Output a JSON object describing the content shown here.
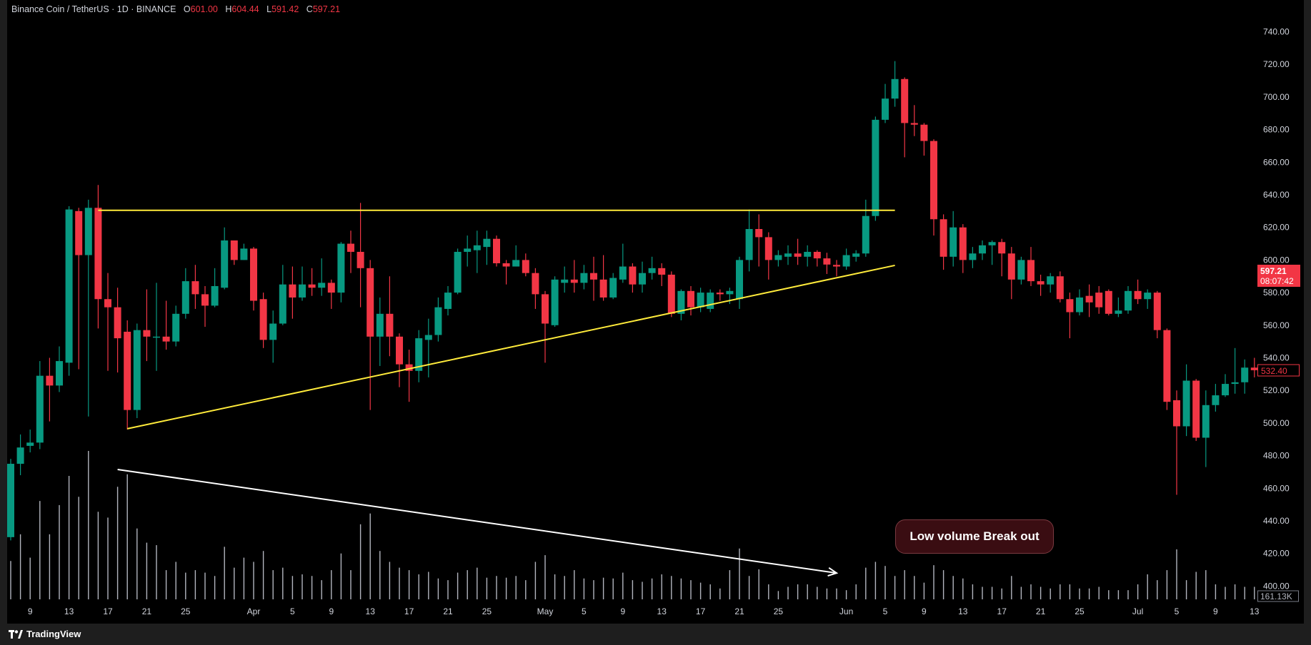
{
  "header": {
    "symbol": "Binance Coin / TetherUS · 1D · BINANCE",
    "o_label": "O",
    "o": "601.00",
    "h_label": "H",
    "h": "604.44",
    "l_label": "L",
    "l": "591.42",
    "c_label": "C",
    "c": "597.21"
  },
  "footer": {
    "brand": "TradingView"
  },
  "price_labels": {
    "current_price": "597.21",
    "countdown": "08:07:42",
    "last_candle_price": "532.40",
    "volume": "161.13K"
  },
  "colors": {
    "up": "#089981",
    "down": "#f23645",
    "volume": "#b2b5be",
    "resistance_line": "#ffeb3b",
    "trendline": "#ffeb3b",
    "arrow": "#ffffff",
    "callout_bg": "#3a0d12"
  },
  "chart_data": {
    "type": "candlestick",
    "ylim": [
      400,
      740
    ],
    "price_ticks": [
      "740.00",
      "720.00",
      "700.00",
      "680.00",
      "660.00",
      "640.00",
      "620.00",
      "600.00",
      "580.00",
      "560.00",
      "540.00",
      "520.00",
      "500.00",
      "480.00",
      "460.00",
      "440.00",
      "420.00",
      "400.00"
    ],
    "x_ticks": [
      {
        "label": "9",
        "date": "Mar 9"
      },
      {
        "label": "13",
        "date": "Mar 13"
      },
      {
        "label": "17",
        "date": "Mar 17"
      },
      {
        "label": "21",
        "date": "Mar 21"
      },
      {
        "label": "25",
        "date": "Mar 25"
      },
      {
        "label": "Apr",
        "date": "Apr 1"
      },
      {
        "label": "5",
        "date": "Apr 5"
      },
      {
        "label": "9",
        "date": "Apr 9"
      },
      {
        "label": "13",
        "date": "Apr 13"
      },
      {
        "label": "17",
        "date": "Apr 17"
      },
      {
        "label": "21",
        "date": "Apr 21"
      },
      {
        "label": "25",
        "date": "Apr 25"
      },
      {
        "label": "May",
        "date": "May 1"
      },
      {
        "label": "5",
        "date": "May 5"
      },
      {
        "label": "9",
        "date": "May 9"
      },
      {
        "label": "13",
        "date": "May 13"
      },
      {
        "label": "17",
        "date": "May 17"
      },
      {
        "label": "21",
        "date": "May 21"
      },
      {
        "label": "25",
        "date": "May 25"
      },
      {
        "label": "Jun",
        "date": "Jun 1"
      },
      {
        "label": "5",
        "date": "Jun 5"
      },
      {
        "label": "9",
        "date": "Jun 9"
      },
      {
        "label": "13",
        "date": "Jun 13"
      },
      {
        "label": "17",
        "date": "Jun 17"
      },
      {
        "label": "21",
        "date": "Jun 21"
      },
      {
        "label": "25",
        "date": "Jun 25"
      },
      {
        "label": "Jul",
        "date": "Jul 1"
      },
      {
        "label": "5",
        "date": "Jul 5"
      },
      {
        "label": "9",
        "date": "Jul 9"
      },
      {
        "label": "13",
        "date": "Jul 13"
      }
    ],
    "candle_fields": [
      "date",
      "open",
      "high",
      "low",
      "close",
      "volume_k"
    ],
    "candles": [
      [
        "Mar 7",
        430,
        478,
        428,
        475,
        494
      ],
      [
        "Mar 8",
        475,
        493,
        468,
        485,
        838
      ],
      [
        "Mar 9",
        486,
        496,
        482,
        488,
        537
      ],
      [
        "Mar 10",
        488,
        538,
        484,
        529,
        1267
      ],
      [
        "Mar 11",
        529,
        540,
        501,
        523,
        838
      ],
      [
        "Mar 12",
        523,
        547,
        519,
        538,
        1214
      ],
      [
        "Mar 13",
        537,
        633,
        529,
        631,
        1590
      ],
      [
        "Mar 14",
        630,
        632,
        533,
        603,
        1321
      ],
      [
        "Mar 15",
        603,
        637,
        504,
        632,
        1912
      ],
      [
        "Mar 16",
        632,
        646,
        558,
        576,
        1128
      ],
      [
        "Mar 17",
        576,
        592,
        532,
        571,
        1053
      ],
      [
        "Mar 18",
        571,
        583,
        531,
        552,
        1450
      ],
      [
        "Mar 19",
        556,
        563,
        496,
        508,
        1611
      ],
      [
        "Mar 20",
        508,
        561,
        503,
        557,
        913
      ],
      [
        "Mar 21",
        557,
        582,
        538,
        553,
        730
      ],
      [
        "Mar 22",
        553,
        586,
        532,
        553,
        698
      ],
      [
        "Mar 23",
        553,
        575,
        545,
        550,
        376
      ],
      [
        "Mar 24",
        550,
        572,
        547,
        567,
        483
      ],
      [
        "Mar 25",
        567,
        595,
        564,
        587,
        344
      ],
      [
        "Mar 26",
        587,
        597,
        570,
        579,
        376
      ],
      [
        "Mar 27",
        579,
        584,
        559,
        572,
        344
      ],
      [
        "Mar 28",
        572,
        595,
        571,
        584,
        301
      ],
      [
        "Mar 29",
        583,
        620,
        582,
        612,
        677
      ],
      [
        "Mar 30",
        612,
        612,
        597,
        600,
        408
      ],
      [
        "Mar 31",
        600,
        610,
        600,
        607,
        537
      ],
      [
        "Apr 1",
        607,
        608,
        569,
        575,
        483
      ],
      [
        "Apr 2",
        576,
        580,
        546,
        551,
        623
      ],
      [
        "Apr 3",
        551,
        569,
        537,
        561,
        376
      ],
      [
        "Apr 4",
        561,
        597,
        560,
        585,
        408
      ],
      [
        "Apr 5",
        585,
        596,
        564,
        577,
        301
      ],
      [
        "Apr 6",
        577,
        596,
        575,
        585,
        322
      ],
      [
        "Apr 7",
        585,
        595,
        578,
        583,
        301
      ],
      [
        "Apr 8",
        583,
        601,
        578,
        586,
        247
      ],
      [
        "Apr 9",
        586,
        588,
        570,
        580,
        376
      ],
      [
        "Apr 10",
        580,
        611,
        574,
        610,
        591
      ],
      [
        "Apr 11",
        610,
        618,
        592,
        605,
        376
      ],
      [
        "Apr 12",
        605,
        635,
        571,
        595,
        967
      ],
      [
        "Apr 13",
        595,
        600,
        508,
        553,
        1106
      ],
      [
        "Apr 14",
        553,
        577,
        535,
        567,
        623
      ],
      [
        "Apr 15",
        567,
        590,
        541,
        553,
        483
      ],
      [
        "Apr 16",
        553,
        555,
        522,
        536,
        408
      ],
      [
        "Apr 17",
        536,
        545,
        513,
        532,
        376
      ],
      [
        "Apr 18",
        532,
        557,
        525,
        552,
        322
      ],
      [
        "Apr 19",
        551,
        564,
        528,
        554,
        354
      ],
      [
        "Apr 20",
        554,
        577,
        550,
        571,
        269
      ],
      [
        "Apr 21",
        570,
        584,
        566,
        580,
        247
      ],
      [
        "Apr 22",
        580,
        607,
        579,
        605,
        344
      ],
      [
        "Apr 23",
        605,
        615,
        596,
        607,
        376
      ],
      [
        "Apr 24",
        606,
        618,
        592,
        609,
        408
      ],
      [
        "Apr 25",
        608,
        618,
        597,
        613,
        279
      ],
      [
        "Apr 26",
        613,
        615,
        596,
        598,
        301
      ],
      [
        "Apr 27",
        598,
        600,
        585,
        596,
        279
      ],
      [
        "Apr 28",
        596,
        609,
        596,
        600,
        301
      ],
      [
        "Apr 29",
        600,
        604,
        590,
        592,
        247
      ],
      [
        "Apr 30",
        592,
        595,
        570,
        579,
        483
      ],
      [
        "May 1",
        579,
        581,
        537,
        561,
        569
      ],
      [
        "May 2",
        560,
        590,
        559,
        588,
        322
      ],
      [
        "May 3",
        586,
        596,
        580,
        588,
        301
      ],
      [
        "May 4",
        588,
        600,
        580,
        586,
        376
      ],
      [
        "May 5",
        586,
        597,
        582,
        592,
        269
      ],
      [
        "May 6",
        592,
        602,
        575,
        588,
        247
      ],
      [
        "May 7",
        588,
        603,
        575,
        577,
        279
      ],
      [
        "May 8",
        577,
        592,
        576,
        589,
        269
      ],
      [
        "May 9",
        588,
        610,
        586,
        596,
        344
      ],
      [
        "May 10",
        596,
        598,
        580,
        585,
        247
      ],
      [
        "May 11",
        585,
        599,
        580,
        592,
        226
      ],
      [
        "May 12",
        592,
        602,
        588,
        595,
        269
      ],
      [
        "May 13",
        595,
        598,
        584,
        591,
        322
      ],
      [
        "May 14",
        591,
        593,
        565,
        567,
        301
      ],
      [
        "May 15",
        567,
        582,
        563,
        581,
        269
      ],
      [
        "May 16",
        581,
        584,
        566,
        571,
        247
      ],
      [
        "May 17",
        571,
        583,
        568,
        580,
        215
      ],
      [
        "May 18",
        570,
        582,
        568,
        580,
        193
      ],
      [
        "May 19",
        580,
        582,
        575,
        579,
        140
      ],
      [
        "May 20",
        579,
        583,
        573,
        581,
        376
      ],
      [
        "May 21",
        576,
        602,
        570,
        600,
        655
      ],
      [
        "May 22",
        600,
        631,
        593,
        619,
        301
      ],
      [
        "May 23",
        619,
        628,
        596,
        614,
        387
      ],
      [
        "May 24",
        614,
        617,
        588,
        600,
        193
      ],
      [
        "May 25",
        600,
        606,
        596,
        603,
        107
      ],
      [
        "May 26",
        602,
        609,
        597,
        604,
        161
      ],
      [
        "May 27",
        604,
        613,
        597,
        602,
        193
      ],
      [
        "May 28",
        602,
        609,
        596,
        605,
        193
      ],
      [
        "May 29",
        605,
        606,
        596,
        601,
        161
      ],
      [
        "May 30",
        601,
        604.44,
        591.42,
        597.21,
        140
      ],
      [
        "May 31",
        597,
        600,
        590,
        596,
        140
      ],
      [
        "Jun 1",
        596,
        607,
        594,
        603,
        118
      ],
      [
        "Jun 2",
        602,
        606,
        599,
        604,
        193
      ],
      [
        "Jun 3",
        604,
        637,
        602,
        627,
        408
      ],
      [
        "Jun 4",
        627,
        688,
        624,
        686,
        483
      ],
      [
        "Jun 5",
        686,
        708,
        684,
        699,
        430
      ],
      [
        "Jun 6",
        699,
        722,
        694,
        711,
        301
      ],
      [
        "Jun 7",
        711,
        712,
        663,
        684,
        376
      ],
      [
        "Jun 8",
        684,
        695,
        676,
        683,
        301
      ],
      [
        "Jun 9",
        683,
        684,
        664,
        673,
        215
      ],
      [
        "Jun 10",
        673,
        674,
        615,
        625,
        440
      ],
      [
        "Jun 11",
        625,
        628,
        594,
        602,
        376
      ],
      [
        "Jun 12",
        602,
        630,
        596,
        620,
        301
      ],
      [
        "Jun 13",
        620,
        622,
        592,
        600,
        269
      ],
      [
        "Jun 14",
        600,
        608,
        595,
        604,
        193
      ],
      [
        "Jun 15",
        604,
        612,
        600,
        609,
        161
      ],
      [
        "Jun 16",
        609,
        612,
        597,
        611,
        161
      ],
      [
        "Jun 17",
        611,
        613,
        590,
        604,
        140
      ],
      [
        "Jun 18",
        604,
        608,
        576,
        588,
        301
      ],
      [
        "Jun 19",
        588,
        602,
        585,
        600,
        161
      ],
      [
        "Jun 20",
        600,
        608,
        584,
        587,
        193
      ],
      [
        "Jun 21",
        587,
        591,
        578,
        585,
        161
      ],
      [
        "Jun 22",
        585,
        592,
        580,
        590,
        140
      ],
      [
        "Jun 23",
        590,
        593,
        574,
        576,
        193
      ],
      [
        "Jun 24",
        576,
        580,
        552,
        568,
        193
      ],
      [
        "Jun 25",
        568,
        582,
        566,
        577,
        140
      ],
      [
        "Jun 26",
        578,
        585,
        565,
        574,
        140
      ],
      [
        "Jun 27",
        580,
        584,
        567,
        571,
        161
      ],
      [
        "Jun 28",
        581,
        582,
        566,
        567,
        118
      ],
      [
        "Jun 29",
        567,
        577,
        565,
        569,
        118
      ],
      [
        "Jun 30",
        569,
        584,
        567,
        581,
        118
      ],
      [
        "Jul 1",
        581,
        588,
        573,
        576,
        193
      ],
      [
        "Jul 2",
        576,
        582,
        570,
        580,
        322
      ],
      [
        "Jul 3",
        580,
        581,
        552,
        557,
        247
      ],
      [
        "Jul 4",
        557,
        558,
        508,
        513,
        376
      ],
      [
        "Jul 5",
        514,
        520,
        456,
        498,
        644
      ],
      [
        "Jul 6",
        498,
        536,
        492,
        526,
        247
      ],
      [
        "Jul 7",
        526,
        527,
        489,
        491,
        354
      ],
      [
        "Jul 8",
        491,
        520,
        473,
        511,
        376
      ],
      [
        "Jul 9",
        511,
        524,
        507,
        517,
        193
      ],
      [
        "Jul 10",
        517,
        530,
        516,
        524,
        161
      ],
      [
        "Jul 11",
        524,
        546,
        518,
        525,
        193
      ],
      [
        "Jul 12",
        525,
        539,
        518,
        534,
        161
      ],
      [
        "Jul 13",
        534,
        540,
        528,
        532.4,
        161.13
      ]
    ],
    "drawings": {
      "resistance": {
        "price": 630.5,
        "from": "Mar 16",
        "to": "Jun 6"
      },
      "support_trendline": {
        "from": [
          "Mar 19",
          496.5
        ],
        "to": [
          "Jun 6",
          596.7
        ]
      },
      "volume_arrow": {
        "from": [
          "Mar 18",
          471.5
        ],
        "to": [
          "May 31",
          408
        ]
      },
      "callout": {
        "text": "Low volume Break out"
      }
    }
  }
}
